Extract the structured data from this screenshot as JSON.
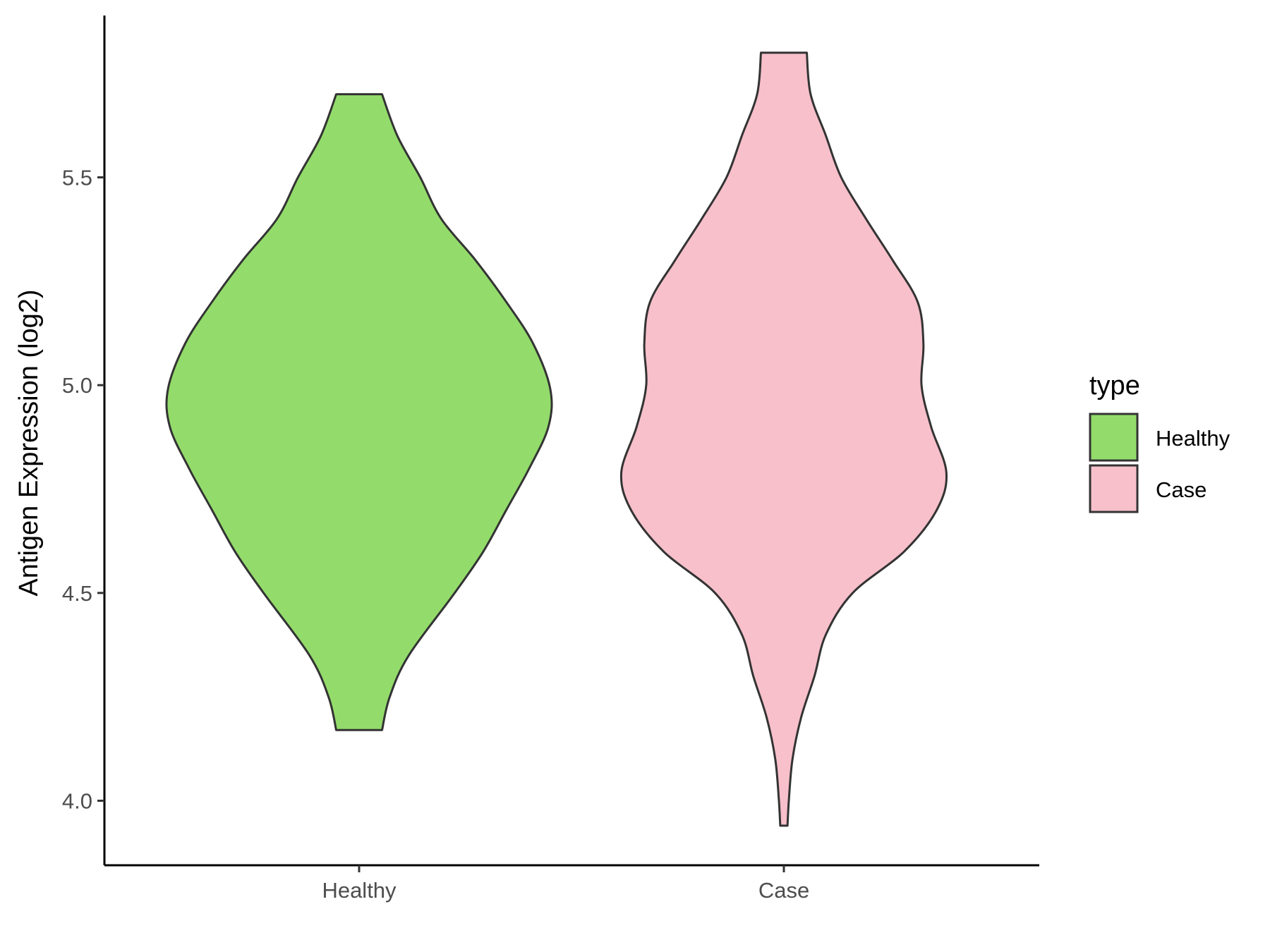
{
  "chart_data": {
    "type": "violin",
    "title": "",
    "xlabel": "",
    "ylabel": "Antigen Expression (log2)",
    "ylim": [
      3.86,
      5.91
    ],
    "y_ticks": [
      4.0,
      4.5,
      5.0,
      5.5
    ],
    "y_tick_labels": [
      "4.0",
      "4.5",
      "5.0",
      "5.5"
    ],
    "categories": [
      "Healthy",
      "Case"
    ],
    "grid": false,
    "legend": {
      "title": "type",
      "position": "right",
      "entries": [
        {
          "label": "Healthy",
          "color": "#93dc6b"
        },
        {
          "label": "Case",
          "color": "#f7c0cb"
        }
      ]
    },
    "series": [
      {
        "name": "Healthy",
        "color": "#93dc6b",
        "min": 4.17,
        "max": 5.7,
        "density": [
          [
            4.17,
            0.12
          ],
          [
            4.25,
            0.16
          ],
          [
            4.35,
            0.26
          ],
          [
            4.5,
            0.5
          ],
          [
            4.6,
            0.65
          ],
          [
            4.7,
            0.77
          ],
          [
            4.8,
            0.89
          ],
          [
            4.9,
            0.99
          ],
          [
            4.99,
            1.0
          ],
          [
            5.1,
            0.91
          ],
          [
            5.2,
            0.77
          ],
          [
            5.3,
            0.61
          ],
          [
            5.4,
            0.43
          ],
          [
            5.5,
            0.32
          ],
          [
            5.6,
            0.2
          ],
          [
            5.7,
            0.12
          ]
        ]
      },
      {
        "name": "Case",
        "color": "#f7c0cb",
        "min": 3.94,
        "max": 5.8,
        "density": [
          [
            3.94,
            0.019
          ],
          [
            4.0,
            0.026
          ],
          [
            4.1,
            0.045
          ],
          [
            4.2,
            0.09
          ],
          [
            4.3,
            0.16
          ],
          [
            4.4,
            0.22
          ],
          [
            4.5,
            0.36
          ],
          [
            4.6,
            0.63
          ],
          [
            4.7,
            0.8
          ],
          [
            4.79,
            0.85
          ],
          [
            4.9,
            0.77
          ],
          [
            5.0,
            0.72
          ],
          [
            5.1,
            0.73
          ],
          [
            5.2,
            0.7
          ],
          [
            5.3,
            0.57
          ],
          [
            5.4,
            0.43
          ],
          [
            5.5,
            0.3
          ],
          [
            5.6,
            0.22
          ],
          [
            5.7,
            0.14
          ],
          [
            5.8,
            0.12
          ]
        ]
      }
    ]
  }
}
